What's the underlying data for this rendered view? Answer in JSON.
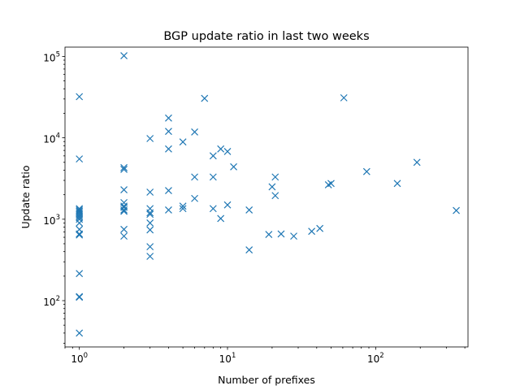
{
  "chart_data": {
    "type": "scatter",
    "title": "BGP update ratio in last two weeks",
    "xlabel": "Number of prefixes",
    "ylabel": "Update ratio",
    "xscale": "log",
    "yscale": "log",
    "xlim": [
      0.8,
      420
    ],
    "ylim": [
      27,
      130000
    ],
    "xticks": [
      {
        "base": "10",
        "exp": "0",
        "value": 1
      },
      {
        "base": "10",
        "exp": "1",
        "value": 10
      },
      {
        "base": "10",
        "exp": "2",
        "value": 100
      }
    ],
    "yticks": [
      {
        "base": "10",
        "exp": "2",
        "value": 100
      },
      {
        "base": "10",
        "exp": "3",
        "value": 1000
      },
      {
        "base": "10",
        "exp": "4",
        "value": 10000
      },
      {
        "base": "10",
        "exp": "5",
        "value": 100000
      }
    ],
    "grid": false,
    "marker": "x",
    "color": "#1f77b4",
    "points": [
      [
        1,
        32000
      ],
      [
        1,
        5500
      ],
      [
        1,
        1350
      ],
      [
        1,
        1300
      ],
      [
        1,
        1250
      ],
      [
        1,
        1200
      ],
      [
        1,
        1150
      ],
      [
        1,
        1100
      ],
      [
        1,
        1050
      ],
      [
        1,
        1000
      ],
      [
        1,
        900
      ],
      [
        1,
        750
      ],
      [
        1,
        660
      ],
      [
        1,
        640
      ],
      [
        1,
        215
      ],
      [
        1,
        112
      ],
      [
        1,
        110
      ],
      [
        1,
        40
      ],
      [
        2,
        102000
      ],
      [
        2,
        4300
      ],
      [
        2,
        4100
      ],
      [
        2,
        2300
      ],
      [
        2,
        1600
      ],
      [
        2,
        1450
      ],
      [
        2,
        1400
      ],
      [
        2,
        1300
      ],
      [
        2,
        1250
      ],
      [
        2,
        750
      ],
      [
        2,
        620
      ],
      [
        3,
        9800
      ],
      [
        3,
        2150
      ],
      [
        3,
        1350
      ],
      [
        3,
        1200
      ],
      [
        3,
        1150
      ],
      [
        3,
        900
      ],
      [
        3,
        740
      ],
      [
        3,
        460
      ],
      [
        3,
        350
      ],
      [
        4,
        17500
      ],
      [
        4,
        12000
      ],
      [
        4,
        7300
      ],
      [
        4,
        2250
      ],
      [
        4,
        1300
      ],
      [
        5,
        8900
      ],
      [
        5,
        1450
      ],
      [
        5,
        1350
      ],
      [
        6,
        11800
      ],
      [
        6,
        3300
      ],
      [
        6,
        1800
      ],
      [
        7,
        30500
      ],
      [
        8,
        6000
      ],
      [
        8,
        3300
      ],
      [
        8,
        1350
      ],
      [
        9,
        7300
      ],
      [
        9,
        1020
      ],
      [
        10,
        6800
      ],
      [
        10,
        1500
      ],
      [
        11,
        4400
      ],
      [
        14,
        1300
      ],
      [
        14,
        420
      ],
      [
        19,
        650
      ],
      [
        20,
        2500
      ],
      [
        21,
        3300
      ],
      [
        21,
        1950
      ],
      [
        23,
        660
      ],
      [
        28,
        620
      ],
      [
        37,
        710
      ],
      [
        42,
        770
      ],
      [
        48,
        2650
      ],
      [
        50,
        2750
      ],
      [
        61,
        31000
      ],
      [
        87,
        3850
      ],
      [
        140,
        2750
      ],
      [
        190,
        5000
      ],
      [
        350,
        1280
      ]
    ]
  }
}
